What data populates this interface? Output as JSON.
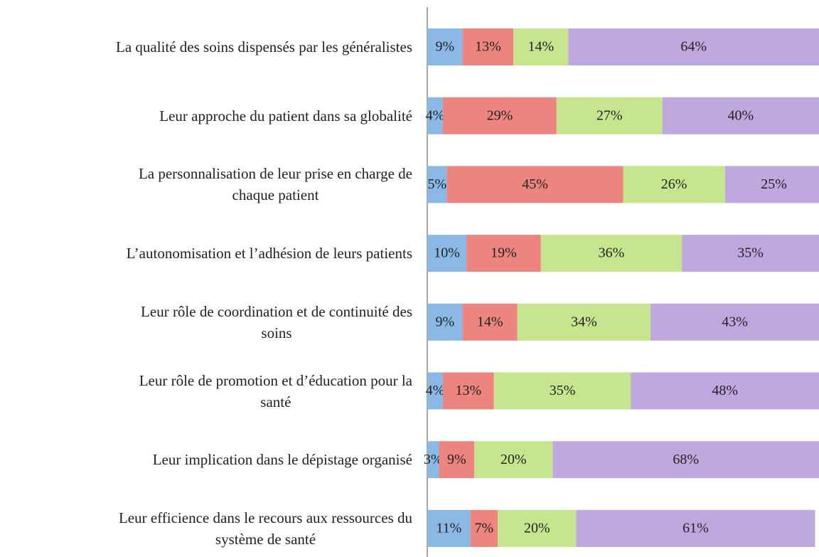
{
  "chart_data": {
    "type": "stacked-bar-horizontal",
    "categories": [
      "La qualité des soins dispensés par les généralistes",
      "Leur approche du patient dans sa globalité",
      "La personnalisation de leur prise en charge de\nchaque patient",
      "L’autonomisation et l’adhésion de leurs patients",
      "Leur rôle de coordination et de continuité des\nsoins",
      "Leur rôle de promotion et d’éducation pour la\nsanté",
      "Leur implication dans le dépistage organisé",
      "Leur efficience dans le recours aux ressources du\nsystème de santé"
    ],
    "series": [
      {
        "color": "#8cb8e6",
        "values": [
          9,
          4,
          5,
          10,
          9,
          4,
          3,
          11
        ],
        "value_labels": [
          "9%",
          "4%",
          "5%",
          "10%",
          "9%",
          "4%",
          "3%",
          "11%"
        ]
      },
      {
        "color": "#ec8480",
        "values": [
          13,
          29,
          45,
          19,
          14,
          13,
          9,
          7
        ],
        "value_labels": [
          "13%",
          "29%",
          "45%",
          "19%",
          "14%",
          "13%",
          "9%",
          "7%"
        ]
      },
      {
        "color": "#c6e58e",
        "values": [
          14,
          27,
          26,
          36,
          34,
          35,
          20,
          20
        ],
        "value_labels": [
          "14%",
          "27%",
          "26%",
          "36%",
          "34%",
          "35%",
          "20%",
          "20%"
        ]
      },
      {
        "color": "#bea8dd",
        "values": [
          64,
          40,
          25,
          35,
          43,
          48,
          68,
          61
        ],
        "value_labels": [
          "64%",
          "40%",
          "25%",
          "35%",
          "43%",
          "48%",
          "68%",
          "61%"
        ]
      }
    ],
    "xlim": [
      0,
      100
    ]
  }
}
